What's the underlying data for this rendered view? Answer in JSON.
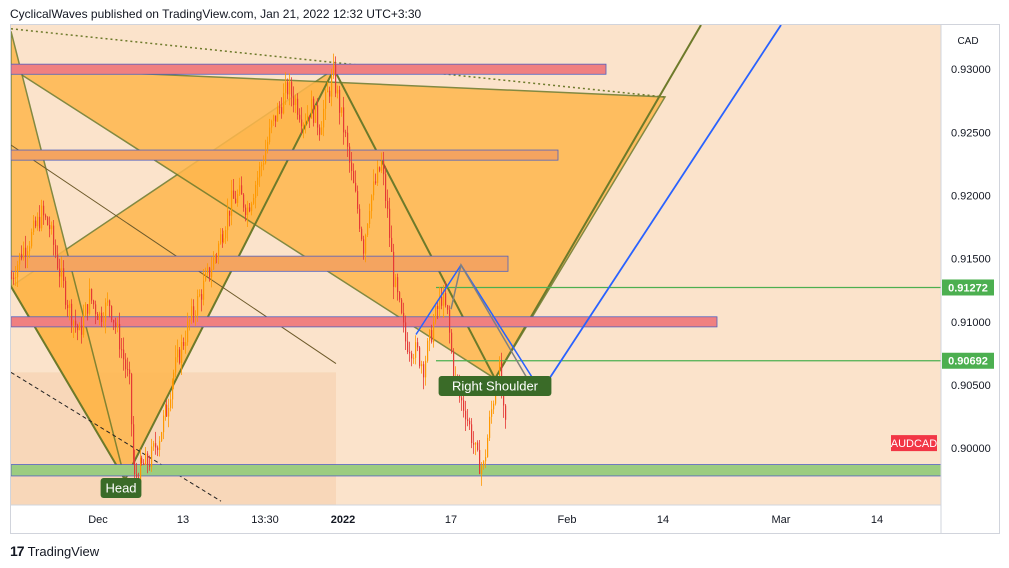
{
  "header": {
    "published": "CyclicalWaves published on TradingView.com, Jan 21, 2022 12:32 UTC+3:30"
  },
  "footer": {
    "logo": "17",
    "brand": "TradingView"
  },
  "colors": {
    "background": "#fbe3cb",
    "up": "#ff9800",
    "down": "#e53935",
    "triangle_fill": "#ffb74d",
    "triangle_stroke": "#6d7a2a",
    "zone_red": "#f08080",
    "zone_orange": "#f4a460",
    "zone_green": "#9ccc80",
    "level_line": "#4caf50",
    "blue_line": "#2962ff",
    "gray_line": "#808080",
    "label_bg": "#3a6b28",
    "symbol_badge": "#f23645"
  },
  "chart_data": {
    "type": "candlestick",
    "symbol": "AUDCAD",
    "currency": "CAD",
    "ylim": [
      0.8955,
      0.9335
    ],
    "y_ticks": [
      0.9,
      0.905,
      0.91,
      0.915,
      0.92,
      0.925,
      0.93
    ],
    "y_tick_labels": [
      "0.90000",
      "0.90500",
      "0.91000",
      "0.91500",
      "0.92000",
      "0.92500",
      "0.93000"
    ],
    "x_ticks": [
      {
        "label": "Dec",
        "px": 97
      },
      {
        "label": "13",
        "px": 182
      },
      {
        "label": "13:30",
        "px": 264
      },
      {
        "label": "2022",
        "px": 342
      },
      {
        "label": "17",
        "px": 450
      },
      {
        "label": "Feb",
        "px": 566
      },
      {
        "label": "14",
        "px": 662
      },
      {
        "label": "Mar",
        "px": 780
      },
      {
        "label": "14",
        "px": 876
      }
    ],
    "price_path": [
      [
        0,
        0.9135
      ],
      [
        10,
        0.9155
      ],
      [
        20,
        0.9168
      ],
      [
        30,
        0.9185
      ],
      [
        38,
        0.9175
      ],
      [
        48,
        0.914
      ],
      [
        58,
        0.911
      ],
      [
        68,
        0.909
      ],
      [
        78,
        0.912
      ],
      [
        88,
        0.9105
      ],
      [
        98,
        0.9115
      ],
      [
        108,
        0.9085
      ],
      [
        118,
        0.905
      ],
      [
        123,
        0.8975
      ],
      [
        130,
        0.8985
      ],
      [
        138,
        0.899
      ],
      [
        148,
        0.901
      ],
      [
        155,
        0.903
      ],
      [
        162,
        0.906
      ],
      [
        170,
        0.908
      ],
      [
        178,
        0.91
      ],
      [
        188,
        0.912
      ],
      [
        198,
        0.914
      ],
      [
        205,
        0.9155
      ],
      [
        212,
        0.9175
      ],
      [
        220,
        0.9195
      ],
      [
        228,
        0.92
      ],
      [
        236,
        0.919
      ],
      [
        244,
        0.921
      ],
      [
        252,
        0.923
      ],
      [
        260,
        0.9255
      ],
      [
        268,
        0.927
      ],
      [
        276,
        0.9285
      ],
      [
        284,
        0.9275
      ],
      [
        292,
        0.926
      ],
      [
        300,
        0.927
      ],
      [
        308,
        0.9255
      ],
      [
        316,
        0.928
      ],
      [
        322,
        0.9295
      ],
      [
        328,
        0.927
      ],
      [
        334,
        0.9245
      ],
      [
        340,
        0.9215
      ],
      [
        346,
        0.919
      ],
      [
        352,
        0.916
      ],
      [
        358,
        0.9195
      ],
      [
        364,
        0.921
      ],
      [
        370,
        0.9225
      ],
      [
        376,
        0.9185
      ],
      [
        382,
        0.9135
      ],
      [
        388,
        0.911
      ],
      [
        394,
        0.9085
      ],
      [
        400,
        0.908
      ],
      [
        406,
        0.9075
      ],
      [
        412,
        0.9065
      ],
      [
        418,
        0.9085
      ],
      [
        424,
        0.9105
      ],
      [
        430,
        0.912
      ],
      [
        436,
        0.9105
      ],
      [
        442,
        0.906
      ],
      [
        448,
        0.904
      ],
      [
        454,
        0.903
      ],
      [
        460,
        0.901
      ],
      [
        466,
        0.899
      ],
      [
        472,
        0.8985
      ],
      [
        478,
        0.902
      ],
      [
        484,
        0.905
      ],
      [
        488,
        0.906
      ],
      [
        492,
        0.9025
      ],
      [
        496,
        0.9005
      ]
    ],
    "shapes": {
      "head_triangle": [
        [
          0.9065,
          0.93,
          0.8975
        ]
      ],
      "zones": [
        {
          "y1": 0.9304,
          "y2": 0.9296,
          "x_end": 595,
          "color": "zone_red"
        },
        {
          "y1": 0.9236,
          "y2": 0.9228,
          "x_end": 547,
          "color": "zone_orange"
        },
        {
          "y1": 0.9152,
          "y2": 0.914,
          "x_end": 497,
          "color": "zone_orange"
        },
        {
          "y1": 0.9104,
          "y2": 0.9096,
          "x_end": 706,
          "color": "zone_red"
        },
        {
          "y1": 0.8987,
          "y2": 0.8978,
          "x_end": 930,
          "color": "zone_green"
        }
      ],
      "levels": [
        {
          "value": 0.91272,
          "label": "0.91272"
        },
        {
          "value": 0.90692,
          "label": "0.90692"
        }
      ]
    },
    "annotations": [
      {
        "text": "Head"
      },
      {
        "text": "Right Shoulder"
      }
    ],
    "symbol_label": "AUDCAD"
  }
}
